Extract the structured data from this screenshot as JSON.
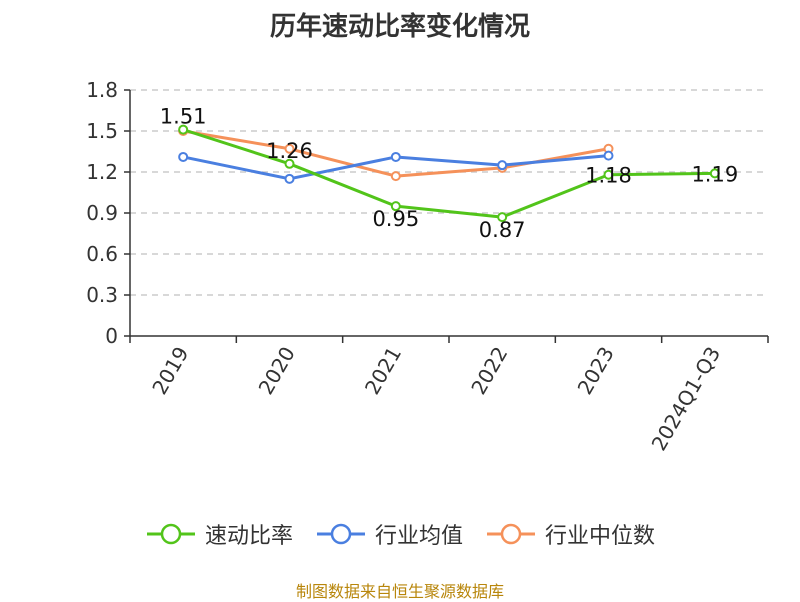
{
  "chart_data": {
    "type": "line",
    "title": "历年速动比率变化情况",
    "categories": [
      "2019",
      "2020",
      "2021",
      "2022",
      "2023",
      "2024Q1-Q3"
    ],
    "ylim": [
      0,
      1.8
    ],
    "yticks": [
      "0",
      "0.3",
      "0.6",
      "0.9",
      "1.2",
      "1.5",
      "1.8"
    ],
    "grid": "horizontal dashed",
    "legend_position": "bottom",
    "series": [
      {
        "name": "速动比率",
        "color": "#52c41a",
        "values": [
          1.51,
          1.26,
          0.95,
          0.87,
          1.18,
          1.19
        ],
        "labels": [
          "1.51",
          "1.26",
          "0.95",
          "0.87",
          "1.18",
          "1.19"
        ]
      },
      {
        "name": "行业均值",
        "color": "#4a7fe0",
        "values": [
          1.31,
          1.15,
          1.31,
          1.25,
          1.32,
          null
        ]
      },
      {
        "name": "行业中位数",
        "color": "#f5915a",
        "values": [
          1.5,
          1.37,
          1.17,
          1.23,
          1.37,
          null
        ]
      }
    ]
  },
  "source": "制图数据来自恒生聚源数据库"
}
